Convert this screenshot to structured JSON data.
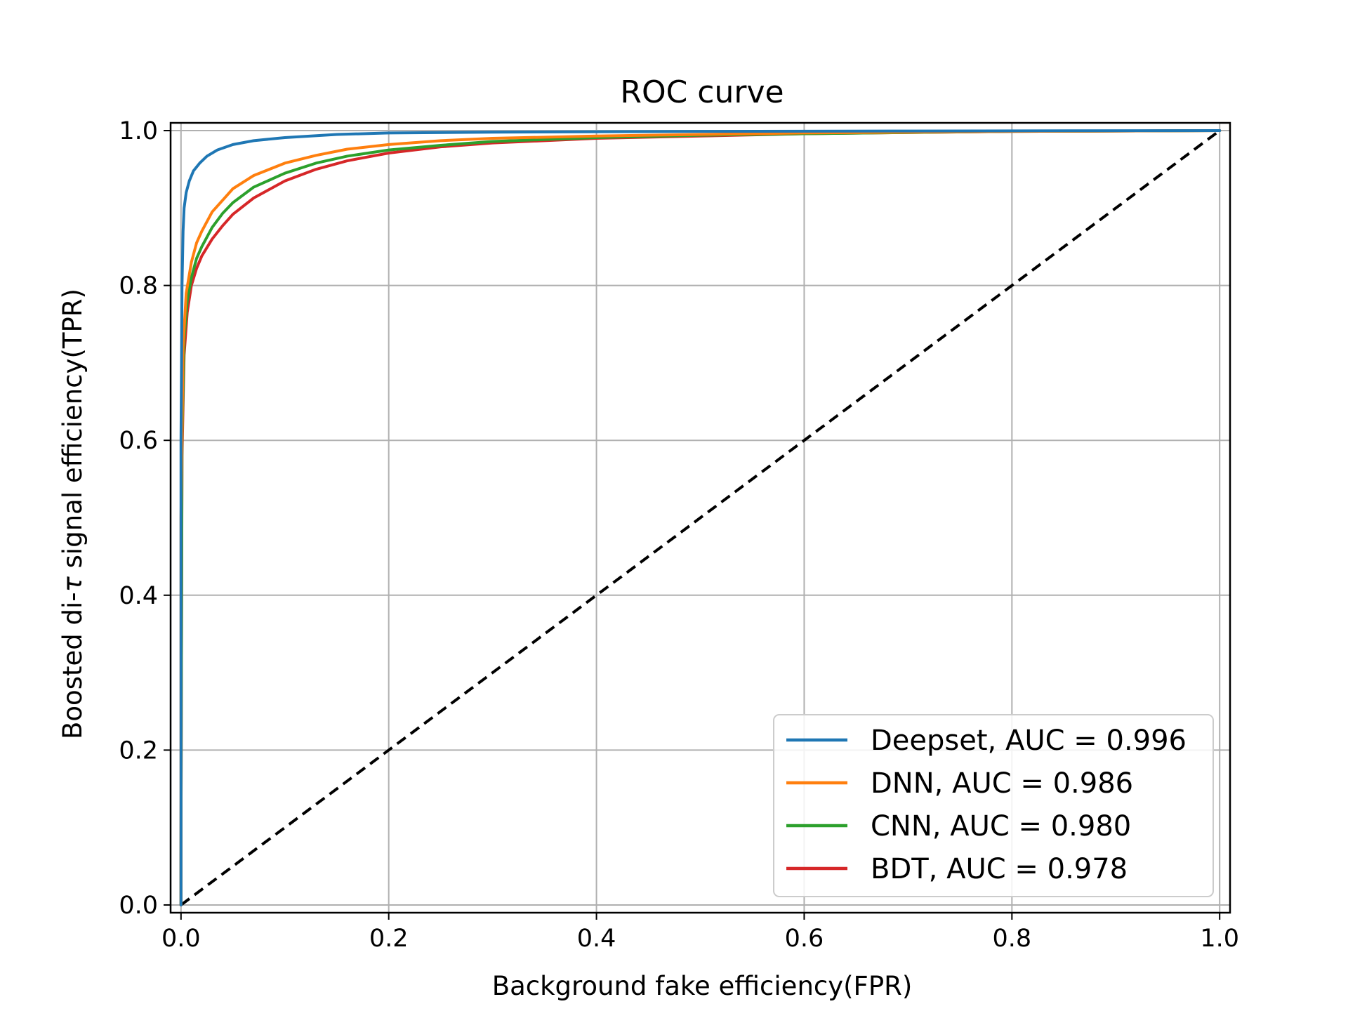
{
  "chart_data": {
    "type": "line",
    "title": "ROC curve",
    "xlabel": "Background fake efficiency(FPR)",
    "ylabel_prefix": "Boosted di-",
    "ylabel_symbol": "τ",
    "ylabel_suffix": " signal efficiency(TPR)",
    "xlim": [
      -0.01,
      1.01
    ],
    "ylim": [
      -0.01,
      1.01
    ],
    "grid": true,
    "legend_position": "bottom-right",
    "x_ticks": [
      0.0,
      0.2,
      0.4,
      0.6,
      0.8,
      1.0
    ],
    "x_tick_labels": [
      "0.0",
      "0.2",
      "0.4",
      "0.6",
      "0.8",
      "1.0"
    ],
    "y_ticks": [
      0.0,
      0.2,
      0.4,
      0.6,
      0.8,
      1.0
    ],
    "y_tick_labels": [
      "0.0",
      "0.2",
      "0.4",
      "0.6",
      "0.8",
      "1.0"
    ],
    "series": [
      {
        "name": "Deepset, AUC = 0.996",
        "color": "#1f77b4",
        "x": [
          0.0,
          0.0,
          0.001,
          0.002,
          0.003,
          0.005,
          0.008,
          0.012,
          0.018,
          0.025,
          0.035,
          0.05,
          0.07,
          0.1,
          0.15,
          0.2,
          0.3,
          0.5,
          0.7,
          1.0
        ],
        "y": [
          0.0,
          0.6,
          0.8,
          0.87,
          0.9,
          0.92,
          0.935,
          0.948,
          0.958,
          0.967,
          0.975,
          0.982,
          0.987,
          0.991,
          0.995,
          0.997,
          0.998,
          0.999,
          0.9995,
          1.0
        ]
      },
      {
        "name": "DNN, AUC = 0.986",
        "color": "#ff7f0e",
        "x": [
          0.0,
          0.0,
          0.002,
          0.005,
          0.01,
          0.015,
          0.02,
          0.03,
          0.04,
          0.05,
          0.07,
          0.1,
          0.13,
          0.16,
          0.2,
          0.25,
          0.3,
          0.4,
          0.5,
          0.6,
          0.8,
          1.0
        ],
        "y": [
          0.0,
          0.5,
          0.72,
          0.79,
          0.83,
          0.855,
          0.87,
          0.895,
          0.91,
          0.925,
          0.942,
          0.958,
          0.968,
          0.976,
          0.982,
          0.987,
          0.99,
          0.993,
          0.995,
          0.997,
          0.999,
          1.0
        ]
      },
      {
        "name": "CNN, AUC = 0.980",
        "color": "#2ca02c",
        "x": [
          0.0,
          0.0,
          0.001,
          0.003,
          0.006,
          0.01,
          0.015,
          0.02,
          0.03,
          0.04,
          0.05,
          0.07,
          0.1,
          0.13,
          0.16,
          0.2,
          0.25,
          0.3,
          0.4,
          0.5,
          0.6,
          0.8,
          1.0
        ],
        "y": [
          0.0,
          0.065,
          0.6,
          0.73,
          0.78,
          0.81,
          0.835,
          0.85,
          0.875,
          0.893,
          0.907,
          0.927,
          0.945,
          0.958,
          0.967,
          0.975,
          0.981,
          0.986,
          0.991,
          0.994,
          0.996,
          0.999,
          1.0
        ]
      },
      {
        "name": "BDT, AUC = 0.978",
        "color": "#d62728",
        "x": [
          0.0,
          0.0,
          0.001,
          0.003,
          0.006,
          0.01,
          0.015,
          0.02,
          0.03,
          0.04,
          0.05,
          0.07,
          0.1,
          0.13,
          0.16,
          0.2,
          0.25,
          0.3,
          0.4,
          0.5,
          0.6,
          0.8,
          1.0
        ],
        "y": [
          0.0,
          0.065,
          0.58,
          0.71,
          0.765,
          0.8,
          0.822,
          0.838,
          0.86,
          0.877,
          0.892,
          0.913,
          0.935,
          0.95,
          0.961,
          0.971,
          0.979,
          0.984,
          0.99,
          0.993,
          0.996,
          0.999,
          1.0
        ]
      }
    ],
    "reference_line": {
      "x": [
        0.0,
        1.0
      ],
      "y": [
        0.0,
        1.0
      ],
      "color": "#000000",
      "style": "dashed"
    }
  }
}
